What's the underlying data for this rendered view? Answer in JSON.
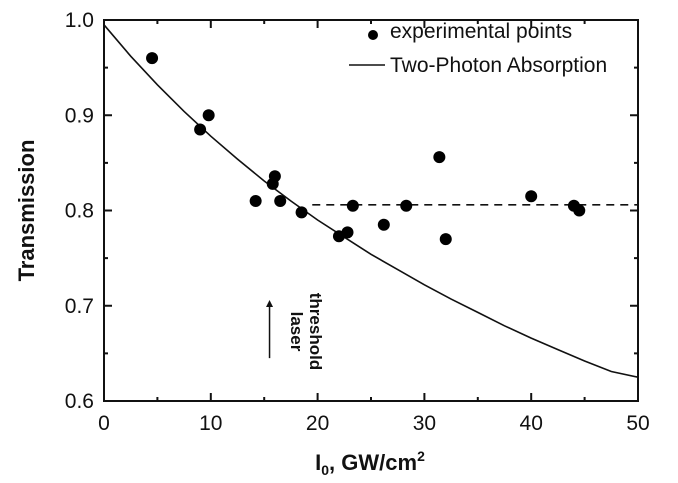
{
  "chart_data": {
    "type": "scatter",
    "xlabel": "I",
    "xlabel_sub": "0",
    "xlabel_rest": ", GW/cm",
    "xlabel_sup": "2",
    "ylabel": "Transmission",
    "xlim": [
      0,
      50
    ],
    "ylim": [
      0.6,
      1.0
    ],
    "x_ticks": [
      0,
      10,
      20,
      30,
      40,
      50
    ],
    "x_tick_labels": [
      "0",
      "10",
      "20",
      "30",
      "40",
      "50"
    ],
    "y_ticks": [
      0.6,
      0.7,
      0.8,
      0.9,
      1.0
    ],
    "y_tick_labels": [
      "0.6",
      "0.7",
      "0.8",
      "0.9",
      "1.0"
    ],
    "grid": false,
    "legend_position": "top-right",
    "series": [
      {
        "name": "experimental points",
        "kind": "points",
        "x": [
          4.5,
          9.0,
          9.8,
          14.2,
          15.8,
          16.0,
          16.5,
          18.5,
          22.0,
          22.8,
          23.3,
          26.2,
          28.3,
          31.4,
          32.0,
          40.0,
          44.0,
          44.5
        ],
        "y": [
          0.96,
          0.885,
          0.9,
          0.81,
          0.828,
          0.836,
          0.81,
          0.798,
          0.773,
          0.777,
          0.805,
          0.785,
          0.805,
          0.856,
          0.77,
          0.815,
          0.805,
          0.8
        ]
      },
      {
        "name": "Two-Photon Absorption",
        "kind": "line",
        "x": [
          0,
          2.5,
          5,
          7.5,
          10,
          12.5,
          15,
          17.5,
          20,
          22.5,
          25,
          27.5,
          30,
          32.5,
          35,
          37.5,
          40,
          42.5,
          45,
          47.5,
          50
        ],
        "y": [
          0.995,
          0.962,
          0.932,
          0.904,
          0.878,
          0.854,
          0.831,
          0.81,
          0.79,
          0.772,
          0.754,
          0.738,
          0.722,
          0.707,
          0.693,
          0.679,
          0.666,
          0.654,
          0.642,
          0.631,
          0.625
        ]
      },
      {
        "kind": "dashed-level",
        "x": [
          19.5,
          50
        ],
        "y": [
          0.806,
          0.806
        ]
      }
    ],
    "annotation": {
      "lines": [
        "laser",
        "threshold"
      ],
      "arrow_x": 15.5,
      "arrow_y": [
        0.645,
        0.706
      ],
      "text_x": 17.5,
      "text_y": 0.673
    }
  }
}
